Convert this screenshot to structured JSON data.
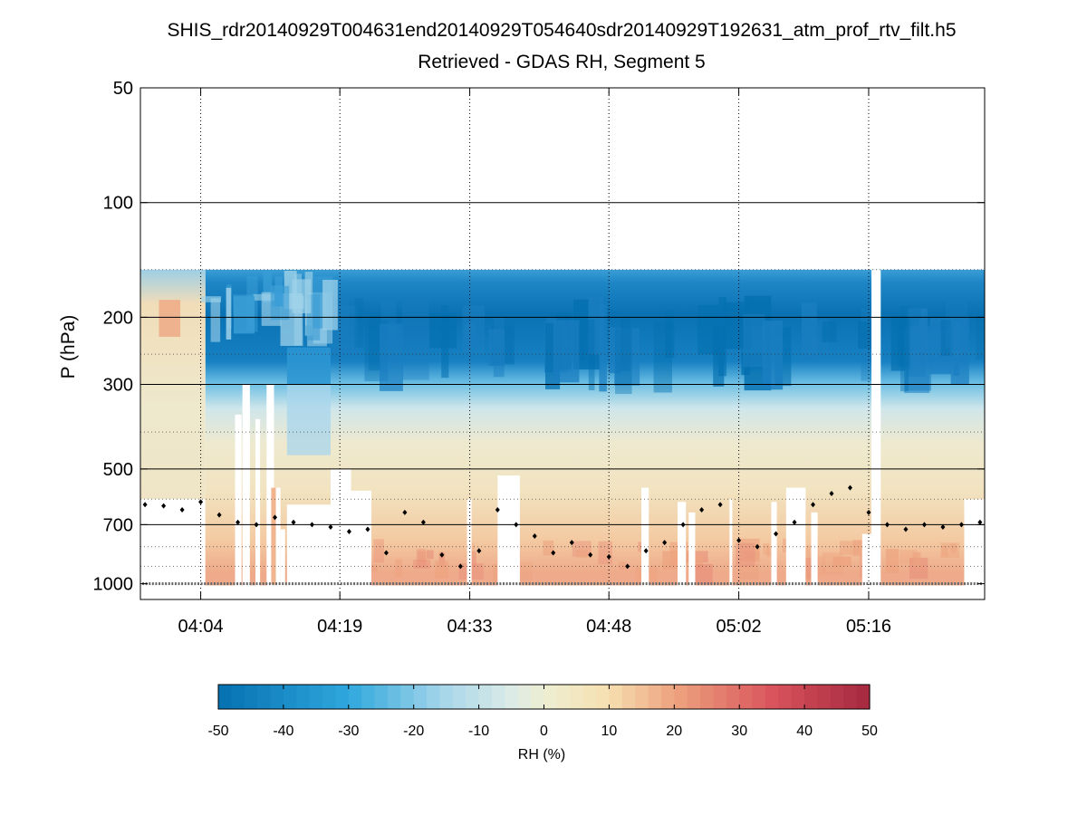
{
  "chart_data": {
    "type": "heatmap",
    "title": "SHIS_rdr20140929T004631end20140929T054640sdr20140929T192631_atm_prof_rtv_filt.h5",
    "subtitle": "Retrieved - GDAS RH, Segment 5",
    "ylabel": "P (hPa)",
    "yscale": "log",
    "ylim": [
      50,
      1100
    ],
    "y_ticks": [
      50,
      100,
      200,
      300,
      500,
      700,
      1000
    ],
    "y_tick_labels": [
      "50",
      "100",
      "200",
      "300",
      "500",
      "700",
      "1000"
    ],
    "y_major_gridlines": [
      100,
      200,
      300,
      500,
      700
    ],
    "xlim_minutes": [
      237.5,
      328.5
    ],
    "x_ticks_minutes": [
      244,
      259,
      273,
      288,
      302,
      316
    ],
    "x_tick_labels": [
      "04:04",
      "04:19",
      "04:33",
      "04:48",
      "05:02",
      "05:16"
    ],
    "colorbar": {
      "label": "RH (%)",
      "range": [
        -50,
        50
      ],
      "ticks": [
        -50,
        -40,
        -30,
        -20,
        -10,
        0,
        10,
        20,
        30,
        40,
        50
      ],
      "tick_labels": [
        "-50",
        "-40",
        "-30",
        "-20",
        "-10",
        "0",
        "10",
        "20",
        "30",
        "40",
        "50"
      ],
      "colors": {
        "m50": "#0570b0",
        "m30": "#2fa7dd",
        "m15": "#a9d7ea",
        "m5": "#dcebe6",
        "p0": "#eeeed2",
        "p10": "#f6dfb0",
        "p20": "#eda37f",
        "p35": "#d9545c",
        "p50": "#a5283f"
      }
    },
    "field_layers": [
      {
        "name": "data top",
        "p_top": 150
      },
      {
        "name": "upper dry band",
        "p_range": [
          180,
          320
        ],
        "rh": -45
      },
      {
        "name": "mid dry layer",
        "p_range": [
          320,
          420
        ],
        "rh": -25
      },
      {
        "name": "transition",
        "p_range": [
          420,
          500
        ],
        "rh": 0
      },
      {
        "name": "lower moist layer",
        "p_range": [
          600,
          1000
        ],
        "rh": 15
      }
    ],
    "surface_pressure_marker": 1000,
    "marker_series": {
      "name": "black diamond markers",
      "minutes": [
        238,
        240,
        242,
        244,
        246,
        248,
        250,
        252,
        254,
        256,
        258,
        260,
        262,
        264,
        266,
        268,
        270,
        272,
        274,
        276,
        278,
        280,
        282,
        284,
        286,
        288,
        290,
        292,
        294,
        296,
        298,
        300,
        302,
        304,
        306,
        308,
        310,
        312,
        314,
        316,
        318,
        320,
        322,
        324,
        326,
        328
      ],
      "pressure": [
        620,
        625,
        640,
        610,
        660,
        690,
        700,
        670,
        690,
        700,
        710,
        730,
        720,
        830,
        650,
        690,
        840,
        900,
        820,
        640,
        700,
        750,
        830,
        780,
        840,
        850,
        900,
        820,
        780,
        700,
        640,
        620,
        770,
        800,
        740,
        690,
        620,
        580,
        560,
        650,
        700,
        720,
        700,
        710,
        700,
        690
      ]
    }
  }
}
